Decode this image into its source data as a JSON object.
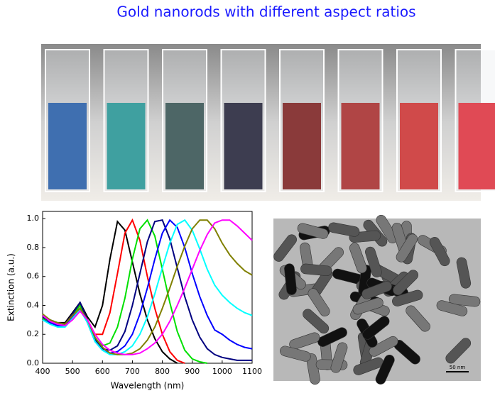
{
  "title": "Gold nanorods with different aspect ratios",
  "chart_data": {
    "type": "line",
    "x_label": "Wavelength (nm)",
    "y_label": "Extinction (a.u.)",
    "x": [
      400,
      425,
      450,
      475,
      500,
      525,
      550,
      575,
      600,
      625,
      650,
      675,
      700,
      725,
      750,
      775,
      800,
      825,
      850,
      875,
      900,
      925,
      950,
      975,
      1000,
      1025,
      1050,
      1075,
      1100
    ],
    "xlim": [
      400,
      1100
    ],
    "xticks": [
      400,
      500,
      600,
      700,
      800,
      900,
      1000,
      1100
    ],
    "ylim": [
      0,
      1.05
    ],
    "yticks": [
      {
        "value": 0,
        "label": "0.0"
      },
      0.2,
      0.4,
      0.6,
      0.8,
      {
        "value": 1,
        "label": "1.0"
      }
    ],
    "series": [
      {
        "color": "#000000",
        "values": [
          0.33,
          0.3,
          0.28,
          0.28,
          0.35,
          0.42,
          0.32,
          0.25,
          0.4,
          0.72,
          0.98,
          0.92,
          0.7,
          0.48,
          0.3,
          0.17,
          0.08,
          0.03,
          0,
          null,
          null,
          null,
          null,
          null,
          null,
          null,
          null,
          null,
          null
        ]
      },
      {
        "color": "#ff0000",
        "values": [
          0.32,
          0.29,
          0.27,
          0.27,
          0.34,
          0.41,
          0.3,
          0.2,
          0.2,
          0.35,
          0.62,
          0.9,
          0.99,
          0.85,
          0.6,
          0.38,
          0.2,
          0.08,
          0.02,
          0,
          null,
          null,
          null,
          null,
          null,
          null,
          null,
          null,
          null
        ]
      },
      {
        "color": "#00e000",
        "values": [
          0.31,
          0.28,
          0.26,
          0.26,
          0.33,
          0.4,
          0.29,
          0.17,
          0.12,
          0.14,
          0.25,
          0.45,
          0.72,
          0.93,
          0.99,
          0.88,
          0.65,
          0.42,
          0.22,
          0.09,
          0.03,
          0.01,
          0,
          null,
          null,
          null,
          null,
          null,
          null
        ]
      },
      {
        "color": "#000080",
        "values": [
          0.32,
          0.29,
          0.27,
          0.27,
          0.34,
          0.42,
          0.3,
          0.16,
          0.1,
          0.09,
          0.12,
          0.22,
          0.4,
          0.62,
          0.84,
          0.98,
          0.99,
          0.86,
          0.66,
          0.46,
          0.3,
          0.18,
          0.1,
          0.06,
          0.04,
          0.03,
          0.02,
          0.02,
          0.02
        ]
      },
      {
        "color": "#0000ff",
        "values": [
          0.3,
          0.28,
          0.26,
          0.26,
          0.32,
          0.38,
          0.28,
          0.15,
          0.09,
          0.07,
          0.08,
          0.12,
          0.2,
          0.34,
          0.52,
          0.72,
          0.9,
          0.99,
          0.94,
          0.8,
          0.62,
          0.46,
          0.33,
          0.23,
          0.2,
          0.16,
          0.13,
          0.11,
          0.1
        ]
      },
      {
        "color": "#00ffff",
        "values": [
          0.3,
          0.27,
          0.25,
          0.25,
          0.31,
          0.37,
          0.28,
          0.15,
          0.09,
          0.06,
          0.06,
          0.08,
          0.12,
          0.2,
          0.32,
          0.48,
          0.66,
          0.83,
          0.96,
          0.99,
          0.92,
          0.79,
          0.65,
          0.54,
          0.47,
          0.42,
          0.38,
          0.35,
          0.33
        ]
      },
      {
        "color": "#808000",
        "values": [
          0.34,
          0.3,
          0.28,
          0.27,
          0.33,
          0.38,
          0.3,
          0.18,
          0.11,
          0.07,
          0.06,
          0.06,
          0.07,
          0.1,
          0.16,
          0.25,
          0.38,
          0.52,
          0.67,
          0.81,
          0.93,
          0.99,
          0.99,
          0.93,
          0.83,
          0.75,
          0.69,
          0.64,
          0.61
        ]
      },
      {
        "color": "#ff00ff",
        "values": [
          0.33,
          0.29,
          0.27,
          0.26,
          0.3,
          0.36,
          0.3,
          0.2,
          0.13,
          0.09,
          0.07,
          0.06,
          0.06,
          0.07,
          0.1,
          0.14,
          0.2,
          0.29,
          0.4,
          0.52,
          0.65,
          0.78,
          0.89,
          0.97,
          0.99,
          0.99,
          0.95,
          0.9,
          0.85
        ]
      }
    ]
  },
  "scale_bar": "50 nm"
}
